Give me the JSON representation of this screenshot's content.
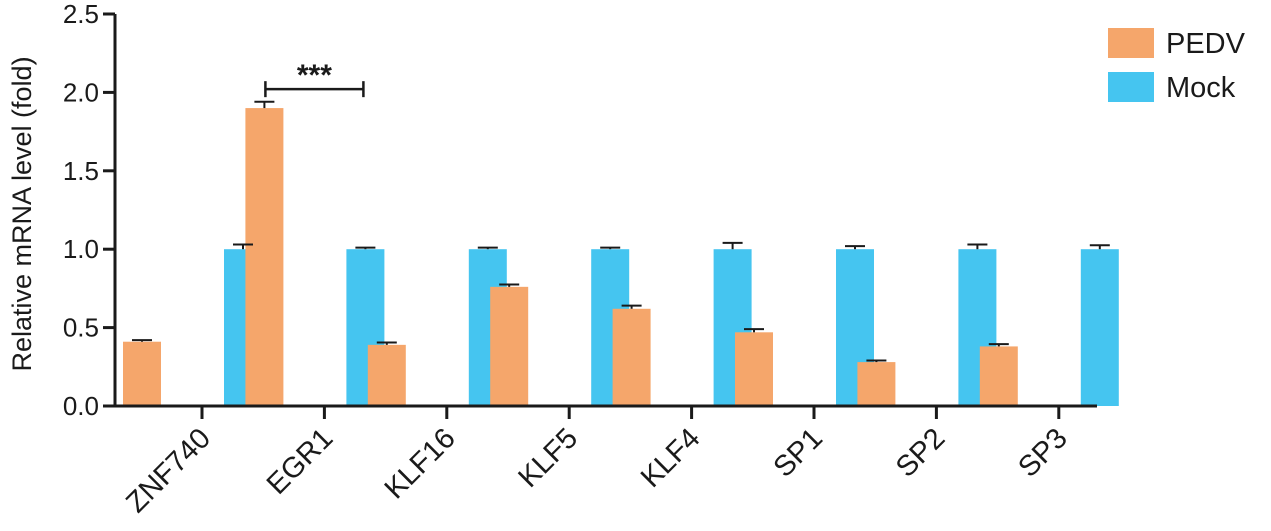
{
  "chart_data": {
    "type": "bar",
    "ylabel": "Relative mRNA level (fold)",
    "ylim": [
      0,
      2.5
    ],
    "yticks": [
      "0.0",
      "0.5",
      "1.0",
      "1.5",
      "2.0",
      "2.5"
    ],
    "categories": [
      "ZNF740",
      "EGR1",
      "KLF16",
      "KLF5",
      "KLF4",
      "SP1",
      "SP2",
      "SP3"
    ],
    "series": [
      {
        "name": "PEDV",
        "color": "#f5a66b",
        "values": [
          0.41,
          1.9,
          0.39,
          0.76,
          0.62,
          0.47,
          0.28,
          0.38
        ],
        "errors": [
          0.01,
          0.04,
          0.015,
          0.015,
          0.02,
          0.02,
          0.01,
          0.015
        ]
      },
      {
        "name": "Mock",
        "color": "#45c5f0",
        "values": [
          1.0,
          1.0,
          1.0,
          1.0,
          1.0,
          1.0,
          1.0,
          1.0
        ],
        "errors": [
          0.03,
          0.01,
          0.01,
          0.01,
          0.04,
          0.02,
          0.03,
          0.025
        ]
      }
    ],
    "annotations": [
      {
        "category": "EGR1",
        "text": "***",
        "y": 2.11
      }
    ],
    "legend": "top-right",
    "grid": false
  }
}
